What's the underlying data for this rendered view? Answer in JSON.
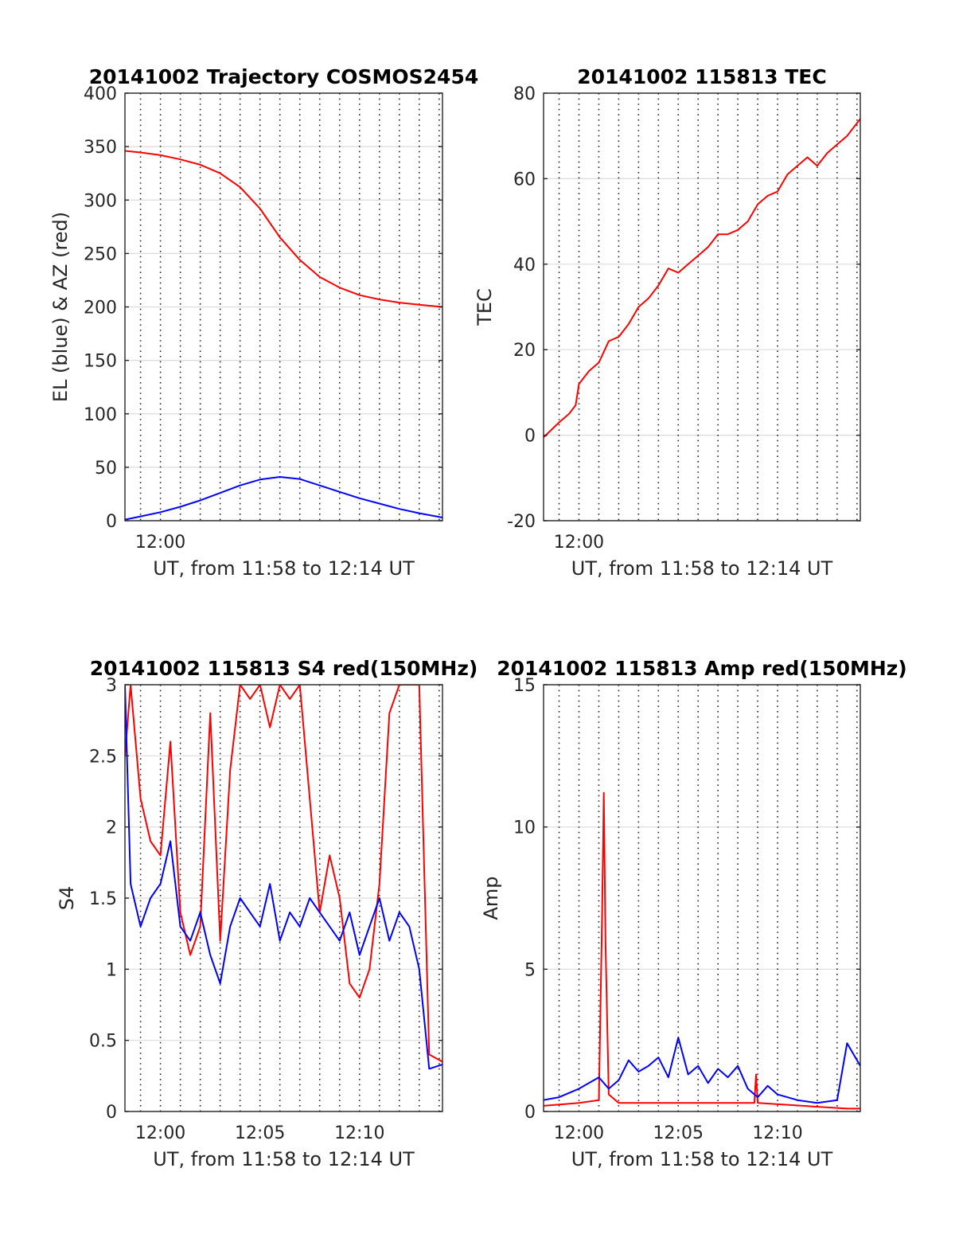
{
  "chart_data": [
    {
      "type": "line",
      "title": "20141002 Trajectory COSMOS2454",
      "xlabel": "UT, from 11:58 to 12:14 UT",
      "ylabel": "EL (blue) & AZ (red)",
      "xlim": [
        "11:58:13",
        "12:14:10"
      ],
      "ylim": [
        0,
        400
      ],
      "yticks": [
        0,
        50,
        100,
        150,
        200,
        250,
        300,
        350,
        400
      ],
      "xtick_labels": [
        {
          "t": "12:00",
          "label": "12:00"
        }
      ],
      "grid": true,
      "colors": {
        "blue": "#0000ff",
        "red": "#ff0000"
      },
      "series": [
        {
          "color": "#ff0000",
          "points": [
            [
              "11:58:13",
              346
            ],
            [
              "11:59:00",
              344.5
            ],
            [
              "12:00:00",
              342
            ],
            [
              "12:01:00",
              338
            ],
            [
              "12:02:00",
              333
            ],
            [
              "12:03:00",
              325
            ],
            [
              "12:04:00",
              312
            ],
            [
              "12:05:00",
              292
            ],
            [
              "12:06:00",
              265
            ],
            [
              "12:07:00",
              244
            ],
            [
              "12:08:00",
              228
            ],
            [
              "12:09:00",
              218
            ],
            [
              "12:10:00",
              211
            ],
            [
              "12:11:00",
              207
            ],
            [
              "12:12:00",
              204
            ],
            [
              "12:13:00",
              202
            ],
            [
              "12:14:10",
              200
            ]
          ]
        },
        {
          "color": "#0000ff",
          "points": [
            [
              "11:58:13",
              1
            ],
            [
              "11:59:00",
              4
            ],
            [
              "12:00:00",
              8
            ],
            [
              "12:01:00",
              13
            ],
            [
              "12:02:00",
              19
            ],
            [
              "12:03:00",
              26
            ],
            [
              "12:04:00",
              33
            ],
            [
              "12:05:00",
              38.5
            ],
            [
              "12:06:00",
              41
            ],
            [
              "12:07:00",
              39
            ],
            [
              "12:08:00",
              33
            ],
            [
              "12:09:00",
              27
            ],
            [
              "12:10:00",
              21
            ],
            [
              "12:11:00",
              16
            ],
            [
              "12:12:00",
              11
            ],
            [
              "12:13:00",
              7
            ],
            [
              "12:14:10",
              3
            ]
          ]
        }
      ]
    },
    {
      "type": "line",
      "title": "20141002 115813 TEC",
      "xlabel": "UT, from 11:58 to 12:14 UT",
      "ylabel": "TEC",
      "xlim": [
        "11:58:13",
        "12:14:10"
      ],
      "ylim": [
        -20,
        80
      ],
      "yticks": [
        -20,
        0,
        20,
        40,
        60,
        80
      ],
      "xtick_labels": [
        {
          "t": "12:00",
          "label": "12:00"
        }
      ],
      "grid": true,
      "series": [
        {
          "color": "#ff0000",
          "points": [
            [
              "11:58:13",
              -0.5
            ],
            [
              "11:59:00",
              3
            ],
            [
              "11:59:30",
              5
            ],
            [
              "11:59:50",
              7
            ],
            [
              "12:00:00",
              12
            ],
            [
              "12:00:30",
              15
            ],
            [
              "12:01:00",
              17
            ],
            [
              "12:01:30",
              22
            ],
            [
              "12:02:00",
              23
            ],
            [
              "12:02:30",
              26
            ],
            [
              "12:03:00",
              30
            ],
            [
              "12:03:30",
              32
            ],
            [
              "12:04:00",
              35
            ],
            [
              "12:04:30",
              39
            ],
            [
              "12:05:00",
              38
            ],
            [
              "12:05:30",
              40
            ],
            [
              "12:06:00",
              42
            ],
            [
              "12:06:30",
              44
            ],
            [
              "12:07:00",
              47
            ],
            [
              "12:07:30",
              47
            ],
            [
              "12:08:00",
              48
            ],
            [
              "12:08:30",
              50
            ],
            [
              "12:09:00",
              54
            ],
            [
              "12:09:30",
              56
            ],
            [
              "12:10:00",
              57
            ],
            [
              "12:10:30",
              61
            ],
            [
              "12:11:00",
              63
            ],
            [
              "12:11:30",
              65
            ],
            [
              "12:12:00",
              63
            ],
            [
              "12:12:30",
              66
            ],
            [
              "12:13:00",
              68
            ],
            [
              "12:13:30",
              70
            ],
            [
              "12:14:10",
              74
            ]
          ]
        }
      ]
    },
    {
      "type": "line",
      "title": "20141002 115813 S4 red(150MHz)",
      "xlabel": "UT, from 11:58 to 12:14 UT",
      "ylabel": "S4",
      "xlim": [
        "11:58:13",
        "12:14:10"
      ],
      "ylim": [
        0,
        3
      ],
      "yticks": [
        0,
        0.5,
        1,
        1.5,
        2,
        2.5,
        3
      ],
      "xtick_labels": [
        {
          "t": "12:00",
          "label": "12:00"
        },
        {
          "t": "12:05",
          "label": "12:05"
        },
        {
          "t": "12:10",
          "label": "12:10"
        }
      ],
      "grid": true,
      "series": [
        {
          "color": "#ff0000",
          "points": [
            [
              "11:58:13",
              2.5
            ],
            [
              "11:58:30",
              3
            ],
            [
              "11:59:00",
              2.2
            ],
            [
              "11:59:30",
              1.9
            ],
            [
              "12:00:00",
              1.8
            ],
            [
              "12:00:30",
              2.6
            ],
            [
              "12:01:00",
              1.4
            ],
            [
              "12:01:30",
              1.1
            ],
            [
              "12:02:00",
              1.3
            ],
            [
              "12:02:30",
              2.8
            ],
            [
              "12:03:00",
              1.2
            ],
            [
              "12:03:30",
              2.4
            ],
            [
              "12:04:00",
              3
            ],
            [
              "12:04:30",
              2.9
            ],
            [
              "12:05:00",
              3
            ],
            [
              "12:05:30",
              2.7
            ],
            [
              "12:06:00",
              3
            ],
            [
              "12:06:30",
              2.9
            ],
            [
              "12:07:00",
              3
            ],
            [
              "12:07:30",
              2.2
            ],
            [
              "12:08:00",
              1.4
            ],
            [
              "12:08:30",
              1.8
            ],
            [
              "12:09:00",
              1.5
            ],
            [
              "12:09:30",
              0.9
            ],
            [
              "12:10:00",
              0.8
            ],
            [
              "12:10:30",
              1.0
            ],
            [
              "12:11:00",
              1.6
            ],
            [
              "12:11:30",
              2.8
            ],
            [
              "12:12:00",
              3
            ],
            [
              "12:12:30",
              3
            ],
            [
              "12:13:00",
              3
            ],
            [
              "12:13:30",
              0.4
            ],
            [
              "12:14:10",
              0.35
            ]
          ]
        },
        {
          "color": "#0000ff",
          "points": [
            [
              "11:58:13",
              3
            ],
            [
              "11:58:30",
              1.6
            ],
            [
              "11:59:00",
              1.3
            ],
            [
              "11:59:30",
              1.5
            ],
            [
              "12:00:00",
              1.6
            ],
            [
              "12:00:30",
              1.9
            ],
            [
              "12:01:00",
              1.3
            ],
            [
              "12:01:30",
              1.2
            ],
            [
              "12:02:00",
              1.4
            ],
            [
              "12:02:30",
              1.1
            ],
            [
              "12:03:00",
              0.9
            ],
            [
              "12:03:30",
              1.3
            ],
            [
              "12:04:00",
              1.5
            ],
            [
              "12:04:30",
              1.4
            ],
            [
              "12:05:00",
              1.3
            ],
            [
              "12:05:30",
              1.6
            ],
            [
              "12:06:00",
              1.2
            ],
            [
              "12:06:30",
              1.4
            ],
            [
              "12:07:00",
              1.3
            ],
            [
              "12:07:30",
              1.5
            ],
            [
              "12:08:00",
              1.4
            ],
            [
              "12:08:30",
              1.3
            ],
            [
              "12:09:00",
              1.2
            ],
            [
              "12:09:30",
              1.4
            ],
            [
              "12:10:00",
              1.1
            ],
            [
              "12:10:30",
              1.3
            ],
            [
              "12:11:00",
              1.5
            ],
            [
              "12:11:30",
              1.2
            ],
            [
              "12:12:00",
              1.4
            ],
            [
              "12:12:30",
              1.3
            ],
            [
              "12:13:00",
              1.0
            ],
            [
              "12:13:30",
              0.3
            ],
            [
              "12:14:10",
              0.33
            ]
          ]
        }
      ]
    },
    {
      "type": "line",
      "title": "20141002 115813 Amp red(150MHz)",
      "xlabel": "UT, from 11:58 to 12:14 UT",
      "ylabel": "Amp",
      "xlim": [
        "11:58:13",
        "12:14:10"
      ],
      "ylim": [
        0,
        15
      ],
      "yticks": [
        0,
        5,
        10,
        15
      ],
      "xtick_labels": [
        {
          "t": "12:00",
          "label": "12:00"
        },
        {
          "t": "12:05",
          "label": "12:05"
        },
        {
          "t": "12:10",
          "label": "12:10"
        }
      ],
      "grid": true,
      "series": [
        {
          "color": "#ff0000",
          "points": [
            [
              "11:58:13",
              0.2
            ],
            [
              "12:00:00",
              0.3
            ],
            [
              "12:01:00",
              0.4
            ],
            [
              "12:01:10",
              7
            ],
            [
              "12:01:15",
              11.2
            ],
            [
              "12:01:20",
              6
            ],
            [
              "12:01:30",
              0.6
            ],
            [
              "12:02:00",
              0.3
            ],
            [
              "12:05:00",
              0.3
            ],
            [
              "12:08:50",
              0.3
            ],
            [
              "12:08:55",
              1.3
            ],
            [
              "12:09:00",
              0.3
            ],
            [
              "12:13:30",
              0.1
            ],
            [
              "12:14:10",
              0.1
            ]
          ]
        },
        {
          "color": "#0000ff",
          "points": [
            [
              "11:58:13",
              0.4
            ],
            [
              "11:59:00",
              0.5
            ],
            [
              "12:00:00",
              0.8
            ],
            [
              "12:00:30",
              1.0
            ],
            [
              "12:01:00",
              1.2
            ],
            [
              "12:01:30",
              0.8
            ],
            [
              "12:02:00",
              1.1
            ],
            [
              "12:02:30",
              1.8
            ],
            [
              "12:03:00",
              1.4
            ],
            [
              "12:03:30",
              1.6
            ],
            [
              "12:04:00",
              1.9
            ],
            [
              "12:04:30",
              1.2
            ],
            [
              "12:05:00",
              2.6
            ],
            [
              "12:05:30",
              1.3
            ],
            [
              "12:06:00",
              1.6
            ],
            [
              "12:06:30",
              1.0
            ],
            [
              "12:07:00",
              1.5
            ],
            [
              "12:07:30",
              1.2
            ],
            [
              "12:08:00",
              1.6
            ],
            [
              "12:08:30",
              0.8
            ],
            [
              "12:09:00",
              0.5
            ],
            [
              "12:09:30",
              0.9
            ],
            [
              "12:10:00",
              0.6
            ],
            [
              "12:11:00",
              0.4
            ],
            [
              "12:12:00",
              0.3
            ],
            [
              "12:13:00",
              0.4
            ],
            [
              "12:13:30",
              2.4
            ],
            [
              "12:14:10",
              1.6
            ]
          ]
        }
      ]
    }
  ]
}
